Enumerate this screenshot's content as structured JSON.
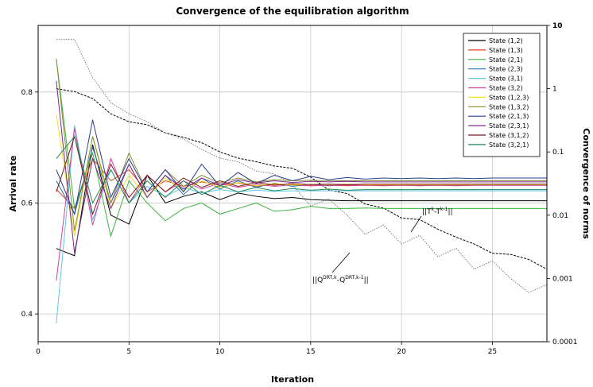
{
  "chart_data": {
    "type": "line",
    "title": "Convergence of the equilibration algorithm",
    "xlabel": "Iteration",
    "ylabel": "Arrival rate",
    "y2label": "Convergence of norms",
    "xlim": [
      0,
      28
    ],
    "ylim": [
      0.35,
      0.92
    ],
    "y2lim": [
      0.0001,
      10
    ],
    "y2scale": "log",
    "xticks": [
      0,
      5,
      10,
      15,
      20,
      25
    ],
    "yticks": [
      0.4,
      0.6,
      0.8
    ],
    "y2ticks": [
      {
        "value": 0.0001,
        "label": "0.0001"
      },
      {
        "value": 0.001,
        "label": "0.001"
      },
      {
        "value": 0.01,
        "label": "0.01"
      },
      {
        "value": 0.1,
        "label": "0.1"
      },
      {
        "value": 1,
        "label": "1"
      },
      {
        "value": 10,
        "label": "10"
      }
    ],
    "grid": true,
    "legend": "top-right",
    "x": [
      1,
      2,
      3,
      4,
      5,
      6,
      7,
      8,
      9,
      10,
      11,
      12,
      13,
      14,
      15,
      16,
      17,
      18,
      19,
      20,
      21,
      22,
      23,
      24,
      25,
      26,
      27,
      28
    ],
    "series": [
      {
        "name": "State (1,2)",
        "color": "#000000",
        "values": [
          0.518,
          0.505,
          0.705,
          0.578,
          0.562,
          0.65,
          0.6,
          0.612,
          0.62,
          0.606,
          0.618,
          0.612,
          0.608,
          0.61,
          0.606,
          0.605,
          0.604,
          0.604,
          0.604,
          0.604,
          0.604,
          0.604,
          0.604,
          0.604,
          0.604,
          0.604,
          0.604,
          0.604
        ]
      },
      {
        "name": "State (1,3)",
        "color": "#e8401c",
        "values": [
          0.625,
          0.59,
          0.68,
          0.64,
          0.66,
          0.62,
          0.64,
          0.63,
          0.638,
          0.632,
          0.636,
          0.63,
          0.634,
          0.632,
          0.631,
          0.632,
          0.631,
          0.632,
          0.631,
          0.632,
          0.631,
          0.632,
          0.631,
          0.632,
          0.632,
          0.632,
          0.632,
          0.632
        ]
      },
      {
        "name": "State (2,1)",
        "color": "#3cb33c",
        "values": [
          0.86,
          0.59,
          0.69,
          0.54,
          0.64,
          0.6,
          0.568,
          0.59,
          0.6,
          0.58,
          0.59,
          0.6,
          0.585,
          0.588,
          0.594,
          0.59,
          0.59,
          0.591,
          0.59,
          0.59,
          0.59,
          0.59,
          0.59,
          0.59,
          0.59,
          0.59,
          0.59,
          0.59
        ]
      },
      {
        "name": "State (2,3)",
        "color": "#2b6fb0",
        "values": [
          0.64,
          0.58,
          0.7,
          0.6,
          0.67,
          0.61,
          0.65,
          0.615,
          0.645,
          0.625,
          0.64,
          0.628,
          0.636,
          0.63,
          0.634,
          0.631,
          0.633,
          0.632,
          0.633,
          0.632,
          0.632,
          0.632,
          0.632,
          0.632,
          0.632,
          0.632,
          0.632,
          0.632
        ]
      },
      {
        "name": "State (3,1)",
        "color": "#5ec8e5",
        "values": [
          0.383,
          0.74,
          0.57,
          0.66,
          0.6,
          0.63,
          0.612,
          0.628,
          0.618,
          0.624,
          0.62,
          0.623,
          0.621,
          0.622,
          0.622,
          0.622,
          0.622,
          0.622,
          0.622,
          0.622,
          0.622,
          0.622,
          0.622,
          0.622,
          0.622,
          0.622,
          0.622,
          0.622
        ]
      },
      {
        "name": "State (3,2)",
        "color": "#d23fa0",
        "values": [
          0.46,
          0.735,
          0.56,
          0.68,
          0.6,
          0.65,
          0.62,
          0.64,
          0.625,
          0.636,
          0.628,
          0.634,
          0.63,
          0.633,
          0.631,
          0.632,
          0.632,
          0.632,
          0.632,
          0.632,
          0.632,
          0.632,
          0.632,
          0.632,
          0.632,
          0.632,
          0.632,
          0.632
        ]
      },
      {
        "name": "State (1,2,3)",
        "color": "#f2e01e",
        "values": [
          0.76,
          0.54,
          0.72,
          0.59,
          0.65,
          0.61,
          0.645,
          0.622,
          0.64,
          0.628,
          0.637,
          0.631,
          0.635,
          0.632,
          0.634,
          0.633,
          0.634,
          0.633,
          0.633,
          0.633,
          0.633,
          0.633,
          0.633,
          0.633,
          0.633,
          0.633,
          0.633,
          0.633
        ]
      },
      {
        "name": "State (1,3,2)",
        "color": "#8c8c3a",
        "values": [
          0.86,
          0.55,
          0.72,
          0.6,
          0.69,
          0.62,
          0.66,
          0.63,
          0.65,
          0.636,
          0.645,
          0.638,
          0.642,
          0.64,
          0.641,
          0.64,
          0.64,
          0.64,
          0.64,
          0.64,
          0.64,
          0.64,
          0.64,
          0.64,
          0.64,
          0.64,
          0.64,
          0.64
        ]
      },
      {
        "name": "State (2,1,3)",
        "color": "#263f8c",
        "values": [
          0.66,
          0.58,
          0.75,
          0.61,
          0.68,
          0.62,
          0.66,
          0.62,
          0.67,
          0.63,
          0.655,
          0.635,
          0.65,
          0.64,
          0.648,
          0.642,
          0.646,
          0.643,
          0.645,
          0.644,
          0.645,
          0.644,
          0.645,
          0.644,
          0.645,
          0.645,
          0.645,
          0.645
        ]
      },
      {
        "name": "State (2,3,1)",
        "color": "#7b2a8c",
        "values": [
          0.82,
          0.51,
          0.68,
          0.59,
          0.67,
          0.61,
          0.65,
          0.625,
          0.645,
          0.632,
          0.642,
          0.636,
          0.64,
          0.637,
          0.639,
          0.638,
          0.639,
          0.638,
          0.638,
          0.638,
          0.638,
          0.638,
          0.638,
          0.638,
          0.638,
          0.638,
          0.638,
          0.638
        ]
      },
      {
        "name": "State (3,1,2)",
        "color": "#7a1a1a",
        "values": [
          0.62,
          0.72,
          0.58,
          0.67,
          0.61,
          0.65,
          0.62,
          0.645,
          0.628,
          0.64,
          0.63,
          0.637,
          0.632,
          0.635,
          0.633,
          0.634,
          0.633,
          0.634,
          0.634,
          0.634,
          0.634,
          0.634,
          0.634,
          0.634,
          0.634,
          0.634,
          0.634,
          0.634
        ]
      },
      {
        "name": "State (3,2,1)",
        "color": "#1f8a5a",
        "values": [
          0.68,
          0.72,
          0.6,
          0.66,
          0.6,
          0.64,
          0.61,
          0.64,
          0.615,
          0.632,
          0.62,
          0.628,
          0.622,
          0.626,
          0.623,
          0.625,
          0.623,
          0.624,
          0.624,
          0.624,
          0.624,
          0.624,
          0.624,
          0.624,
          0.624,
          0.624,
          0.624,
          0.624
        ]
      }
    ],
    "norm_series": [
      {
        "name": "||T^k-T^k-1||",
        "label_base": "||T",
        "label_sup": "k",
        "label_mid": "-T",
        "label_sup2": "k-1",
        "label_end": "||",
        "color": "#000000",
        "axis": "right",
        "dash": "dashed",
        "values": [
          1.0,
          0.9,
          0.7,
          0.4,
          0.3,
          0.27,
          0.2,
          0.17,
          0.14,
          0.1,
          0.08,
          0.07,
          0.06,
          0.055,
          0.04,
          0.025,
          0.022,
          0.015,
          0.013,
          0.009,
          0.0085,
          0.006,
          0.0045,
          0.0035,
          0.0025,
          0.0024,
          0.002,
          0.0014
        ]
      },
      {
        "name": "||Q^DRT,k-Q^DRT,k-1||",
        "label_base": "||Q",
        "label_sup": "DRT,k",
        "label_mid": "-Q",
        "label_sup2": "DRT,k-1",
        "label_end": "||",
        "color": "#808080",
        "axis": "right",
        "dash": "dotted",
        "values": [
          6.0,
          6.0,
          1.5,
          0.6,
          0.4,
          0.3,
          0.2,
          0.16,
          0.11,
          0.08,
          0.07,
          0.05,
          0.045,
          0.03,
          0.014,
          0.018,
          0.01,
          0.005,
          0.007,
          0.0035,
          0.0048,
          0.0022,
          0.003,
          0.0014,
          0.0019,
          0.001,
          0.0006,
          0.0008
        ]
      }
    ]
  }
}
